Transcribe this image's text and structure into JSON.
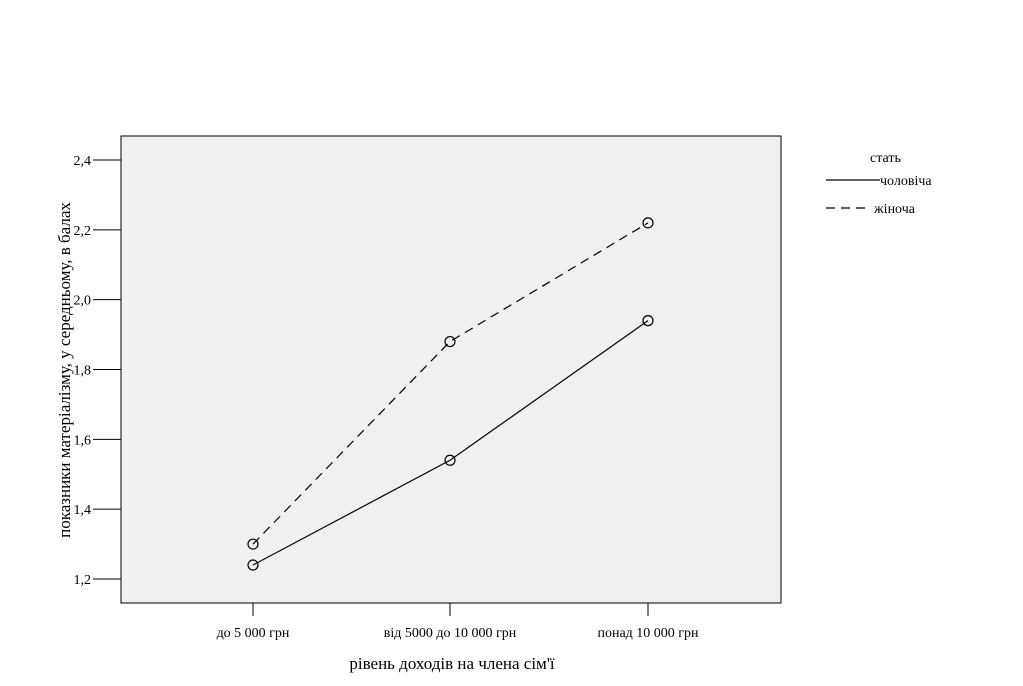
{
  "chart_data": {
    "type": "line",
    "xlabel": "рівень доходів на члена сім'ї",
    "ylabel": "показники матеріалізму, у середньому, в балах",
    "categories": [
      "до 5 000 грн",
      "від 5000 до 10 000 грн",
      "понад 10 000 грн"
    ],
    "ylim": [
      1.17,
      2.49
    ],
    "yticks": [
      1.2,
      1.4,
      1.6,
      1.8,
      2.0,
      2.2,
      2.4
    ],
    "ytick_labels": [
      "1,2",
      "1,4",
      "1,6",
      "1,8",
      "2,0",
      "2,2",
      "2,4"
    ],
    "grid": false,
    "background_color": "#f0f0f0",
    "legend": {
      "title": "стать",
      "placement": "right"
    },
    "series": [
      {
        "name": "чоловіча",
        "values": [
          1.24,
          1.54,
          1.94
        ],
        "style": "solid",
        "marker": "circle",
        "color": "#000000"
      },
      {
        "name": "жіноча",
        "values": [
          1.3,
          1.88,
          2.22
        ],
        "style": "dashed",
        "marker": "circle",
        "color": "#000000"
      }
    ]
  }
}
